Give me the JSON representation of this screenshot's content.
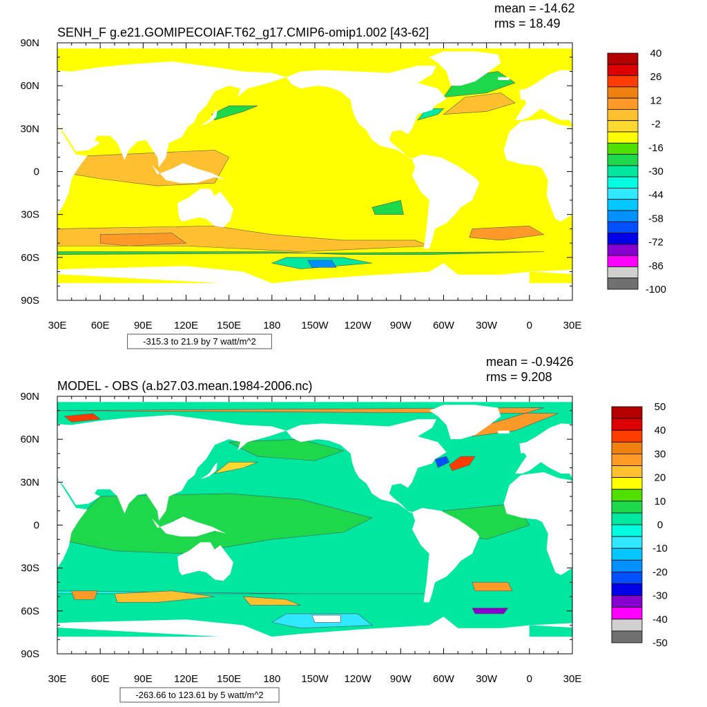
{
  "chart_data": [
    {
      "type": "heatmap",
      "title": "SENH_F g.e21.GOMIPECOIAF.T62_g17.CMIP6-omip1.002 [43-62]",
      "stats": [
        "mean = -14.62",
        "rms = 18.49"
      ],
      "range_label": "-315.3 to 21.9 by 7 watt/m^2",
      "x_ticks": [
        "30E",
        "60E",
        "90E",
        "120E",
        "150E",
        "180",
        "150W",
        "120W",
        "90W",
        "60W",
        "30W",
        "0",
        "30E"
      ],
      "y_ticks": [
        "90N",
        "60N",
        "30N",
        "0",
        "30S",
        "60S",
        "90S"
      ],
      "colorbar": {
        "labels": [
          "40",
          "26",
          "12",
          "-2",
          "-16",
          "-30",
          "-44",
          "-58",
          "-72",
          "-86",
          "-100"
        ],
        "colors": [
          "#b40000",
          "#dc0000",
          "#ff3c00",
          "#f08010",
          "#ff9a28",
          "#ffc030",
          "#ffd830",
          "#ffff00",
          "#50e000",
          "#1cd84a",
          "#00e8a0",
          "#00ffe0",
          "#30e8ff",
          "#00c8ff",
          "#0090ff",
          "#0050ff",
          "#0000e8",
          "#8800d0",
          "#ff00ff",
          "#d0d0d0",
          "#707070"
        ]
      }
    },
    {
      "type": "heatmap",
      "title": "MODEL - OBS (a.b27.03.mean.1984-2006.nc)",
      "stats": [
        "mean = -0.9426",
        "rms = 9.208"
      ],
      "range_label": "-263.66 to 123.61 by 5 watt/m^2",
      "x_ticks": [
        "30E",
        "60E",
        "90E",
        "120E",
        "150E",
        "180",
        "150W",
        "120W",
        "90W",
        "60W",
        "30W",
        "0",
        "30E"
      ],
      "y_ticks": [
        "90N",
        "60N",
        "30N",
        "0",
        "30S",
        "60S",
        "90S"
      ],
      "colorbar": {
        "labels": [
          "50",
          "40",
          "30",
          "20",
          "10",
          "0",
          "-10",
          "-20",
          "-30",
          "-40",
          "-50"
        ],
        "colors": [
          "#b40000",
          "#dc0000",
          "#ff3c00",
          "#f08010",
          "#ff9a28",
          "#ffc030",
          "#ffff00",
          "#50e000",
          "#1cd84a",
          "#00e8a0",
          "#00ffe0",
          "#30e8ff",
          "#00c8ff",
          "#0090ff",
          "#0050ff",
          "#0000e8",
          "#8800d0",
          "#ff00ff",
          "#d0d0d0",
          "#707070"
        ]
      }
    }
  ]
}
